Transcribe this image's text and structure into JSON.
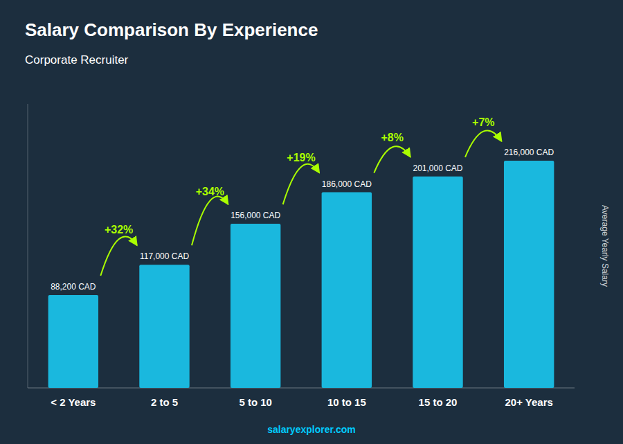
{
  "chart_data": {
    "type": "bar",
    "title": "Salary Comparison By Experience",
    "subtitle": "Corporate Recruiter",
    "ylabel": "Average Yearly Salary",
    "footer": "salaryexplorer.com",
    "categories": [
      "< 2 Years",
      "2 to 5",
      "5 to 10",
      "10 to 15",
      "15 to 20",
      "20+ Years"
    ],
    "values": [
      88200,
      117000,
      156000,
      186000,
      201000,
      216000
    ],
    "value_labels": [
      "88,200 CAD",
      "117,000 CAD",
      "156,000 CAD",
      "186,000 CAD",
      "201,000 CAD",
      "216,000 CAD"
    ],
    "data_labels": true,
    "annotations": [
      "+32%",
      "+34%",
      "+19%",
      "+8%",
      "+7%"
    ],
    "color": "#1ab8de",
    "ylim": [
      0,
      270000
    ],
    "grid": false,
    "tick_labels": "x"
  }
}
